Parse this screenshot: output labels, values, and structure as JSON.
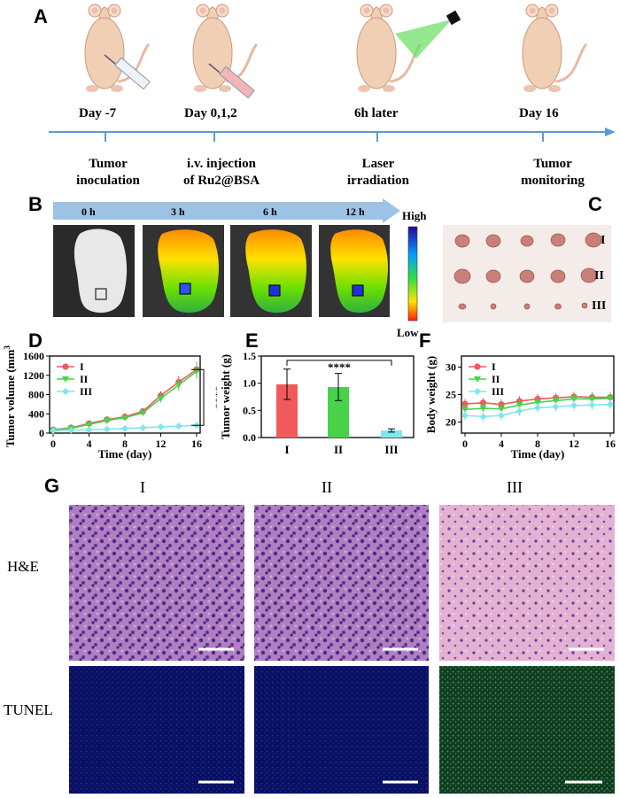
{
  "panels": {
    "A": "A",
    "B": "B",
    "C": "C",
    "D": "D",
    "E": "E",
    "F": "F",
    "G": "G"
  },
  "timeline": {
    "events": [
      {
        "day": "Day -7",
        "desc1": "Tumor",
        "desc2": "inoculation"
      },
      {
        "day": "Day 0,1,2",
        "desc1": "i.v. injection",
        "desc2": "of Ru2@BSA"
      },
      {
        "day": "6h later",
        "desc1": "Laser",
        "desc2": "irradiation"
      },
      {
        "day": "Day 16",
        "desc1": "Tumor",
        "desc2": "monitoring"
      }
    ]
  },
  "imaging": {
    "times": [
      "0 h",
      "3 h",
      "6 h",
      "12 h"
    ],
    "scale_high": "High",
    "scale_low": "Low"
  },
  "tumor_photo": {
    "groups": [
      "I",
      "II",
      "III"
    ]
  },
  "charts": {
    "colors": {
      "I": "#f05a5a",
      "II": "#47d24a",
      "III": "#7ee6ec"
    },
    "tumor_volume": {
      "type": "line",
      "ylabel": "Tumor volume (mm",
      "ylabel_sup": "3",
      "ylabel_end": ")",
      "xlabel": "Time (day)",
      "x": [
        0,
        2,
        4,
        6,
        8,
        10,
        12,
        14,
        16
      ],
      "xticks": [
        "0",
        "4",
        "8",
        "12",
        "16"
      ],
      "yticks": [
        "0",
        "400",
        "800",
        "1200",
        "1600"
      ],
      "ylim": [
        0,
        1600
      ],
      "legend": [
        "I",
        "II",
        "III"
      ],
      "significance": "****",
      "series": [
        {
          "name": "I",
          "values": [
            70,
            110,
            200,
            280,
            340,
            450,
            780,
            1060,
            1320
          ]
        },
        {
          "name": "II",
          "values": [
            60,
            100,
            180,
            260,
            320,
            420,
            720,
            1000,
            1280
          ]
        },
        {
          "name": "III",
          "values": [
            50,
            60,
            70,
            80,
            95,
            110,
            130,
            145,
            160
          ]
        }
      ]
    },
    "tumor_weight": {
      "type": "bar",
      "ylabel": "Tumor weight (g)",
      "categories": [
        "I",
        "II",
        "III"
      ],
      "values": [
        0.98,
        0.93,
        0.13
      ],
      "errors": [
        0.28,
        0.25,
        0.03
      ],
      "yticks": [
        "0.0",
        "0.5",
        "1.0",
        "1.5"
      ],
      "ylim": [
        0,
        1.5
      ],
      "significance": "****"
    },
    "body_weight": {
      "type": "line",
      "ylabel": "Body weight (g)",
      "xlabel": "Time (day)",
      "x": [
        0,
        2,
        4,
        6,
        8,
        10,
        12,
        14,
        16
      ],
      "xticks": [
        "0",
        "4",
        "8",
        "12",
        "16"
      ],
      "yticks": [
        "20",
        "25",
        "30"
      ],
      "ylim": [
        18,
        32
      ],
      "legend": [
        "I",
        "II",
        "III"
      ],
      "series": [
        {
          "name": "I",
          "values": [
            23.3,
            23.5,
            23.2,
            23.8,
            24.2,
            24.4,
            24.6,
            24.5,
            24.5
          ]
        },
        {
          "name": "II",
          "values": [
            22.3,
            22.5,
            22.4,
            23.1,
            23.6,
            23.9,
            24.2,
            24.2,
            24.3
          ]
        },
        {
          "name": "III",
          "values": [
            21.2,
            21.0,
            21.2,
            22.0,
            22.6,
            22.8,
            23.0,
            23.1,
            23.2
          ]
        }
      ]
    }
  },
  "histology": {
    "columns": [
      "I",
      "II",
      "III"
    ],
    "rows": [
      "H&E",
      "TUNEL"
    ]
  }
}
